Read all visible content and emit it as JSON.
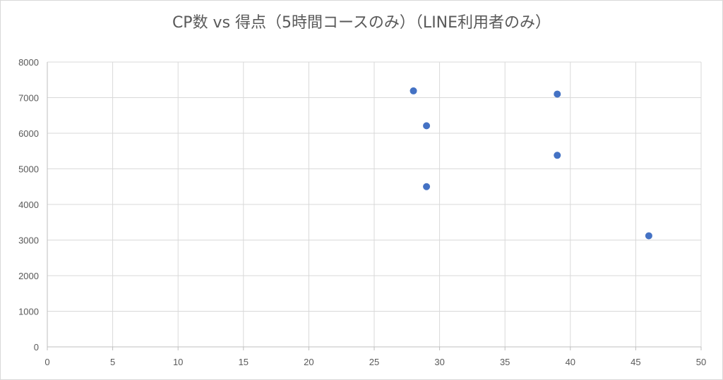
{
  "chart_data": {
    "type": "scatter",
    "title": "CP数 vs 得点（5時間コースのみ）（LINE利用者のみ）",
    "xlabel": "",
    "ylabel": "",
    "xlim": [
      0,
      50
    ],
    "ylim": [
      0,
      8000
    ],
    "x_ticks": [
      "0",
      "5",
      "10",
      "15",
      "20",
      "25",
      "30",
      "35",
      "40",
      "45",
      "50"
    ],
    "y_ticks": [
      "0",
      "1000",
      "2000",
      "3000",
      "4000",
      "5000",
      "6000",
      "7000",
      "8000"
    ],
    "grid": true,
    "legend": "none",
    "marker_color": "#4472c4",
    "series": [
      {
        "x": [
          28,
          29,
          29,
          39,
          39,
          46
        ],
        "y": [
          7190,
          6210,
          4500,
          7100,
          5380,
          3120
        ]
      }
    ]
  }
}
